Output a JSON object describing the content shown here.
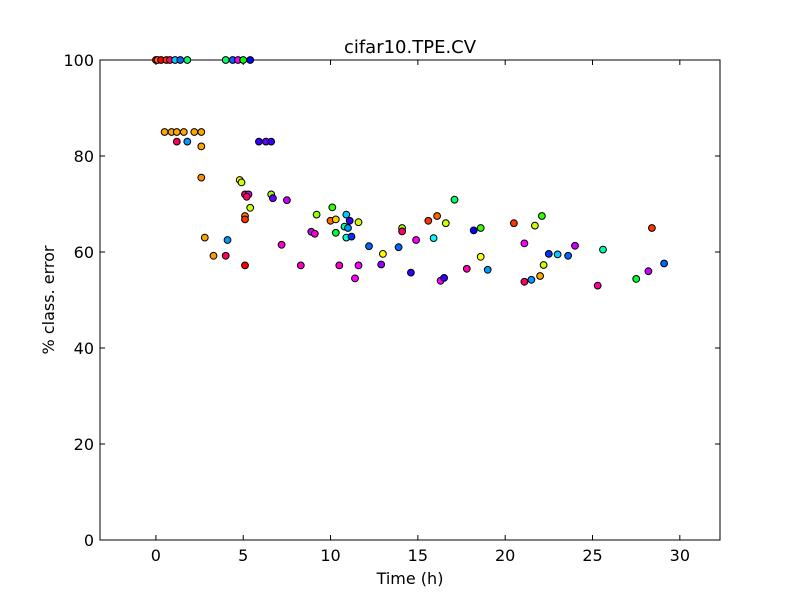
{
  "chart_data": {
    "type": "scatter",
    "title": "cifar10.TPE.CV",
    "xlabel": "Time (h)",
    "ylabel": "% class. error",
    "xlim": [
      -3.2,
      32.3
    ],
    "ylim": [
      0,
      100
    ],
    "xticks": [
      0,
      5,
      10,
      15,
      20,
      25,
      30
    ],
    "yticks": [
      0,
      20,
      40,
      60,
      80,
      100
    ],
    "grid": false,
    "marker_edge_color": "#000000",
    "points": [
      {
        "x": 0.0,
        "y": 100,
        "color": "#ff0000"
      },
      {
        "x": 0.1,
        "y": 100,
        "color": "#ff6600"
      },
      {
        "x": 0.3,
        "y": 100,
        "color": "#ff0000"
      },
      {
        "x": 0.6,
        "y": 100,
        "color": "#ff3300"
      },
      {
        "x": 0.8,
        "y": 100,
        "color": "#ff0066"
      },
      {
        "x": 1.1,
        "y": 100,
        "color": "#00ccff"
      },
      {
        "x": 1.4,
        "y": 100,
        "color": "#0066ff"
      },
      {
        "x": 1.8,
        "y": 100,
        "color": "#00ff66"
      },
      {
        "x": 4.0,
        "y": 100,
        "color": "#00ff66"
      },
      {
        "x": 4.4,
        "y": 100,
        "color": "#0066ff"
      },
      {
        "x": 4.7,
        "y": 100,
        "color": "#ff00ff"
      },
      {
        "x": 5.0,
        "y": 100,
        "color": "#00ff00"
      },
      {
        "x": 5.4,
        "y": 100,
        "color": "#0000ff"
      },
      {
        "x": 0.5,
        "y": 85,
        "color": "#ffa500"
      },
      {
        "x": 0.9,
        "y": 85,
        "color": "#ffa500"
      },
      {
        "x": 1.2,
        "y": 85,
        "color": "#ffa500"
      },
      {
        "x": 1.6,
        "y": 85,
        "color": "#ffa500"
      },
      {
        "x": 2.2,
        "y": 85,
        "color": "#ffa500"
      },
      {
        "x": 2.6,
        "y": 85,
        "color": "#ffa500"
      },
      {
        "x": 1.2,
        "y": 83,
        "color": "#ff0055"
      },
      {
        "x": 1.8,
        "y": 83,
        "color": "#0099ff"
      },
      {
        "x": 2.6,
        "y": 82,
        "color": "#ffa500"
      },
      {
        "x": 2.6,
        "y": 75.5,
        "color": "#ff8c00"
      },
      {
        "x": 5.9,
        "y": 83,
        "color": "#3300ff"
      },
      {
        "x": 6.3,
        "y": 83,
        "color": "#6600ff"
      },
      {
        "x": 6.6,
        "y": 83,
        "color": "#3300ff"
      },
      {
        "x": 4.8,
        "y": 75,
        "color": "#ffff00"
      },
      {
        "x": 4.9,
        "y": 74.5,
        "color": "#ccff00"
      },
      {
        "x": 5.1,
        "y": 72,
        "color": "#ff0066"
      },
      {
        "x": 5.3,
        "y": 72,
        "color": "#cc00ff"
      },
      {
        "x": 5.2,
        "y": 71.5,
        "color": "#ff0066"
      },
      {
        "x": 6.6,
        "y": 72,
        "color": "#99ff00"
      },
      {
        "x": 6.7,
        "y": 71.2,
        "color": "#6600ff"
      },
      {
        "x": 7.5,
        "y": 70.8,
        "color": "#cc00ff"
      },
      {
        "x": 5.4,
        "y": 69.2,
        "color": "#ccff00"
      },
      {
        "x": 5.1,
        "y": 67.5,
        "color": "#ff7f00"
      },
      {
        "x": 5.1,
        "y": 66.8,
        "color": "#ff3300"
      },
      {
        "x": 2.8,
        "y": 63,
        "color": "#ffa500"
      },
      {
        "x": 4.1,
        "y": 62.5,
        "color": "#0099ff"
      },
      {
        "x": 3.3,
        "y": 59.2,
        "color": "#ff9900"
      },
      {
        "x": 4.0,
        "y": 59.2,
        "color": "#ff0066"
      },
      {
        "x": 5.1,
        "y": 57.2,
        "color": "#ff0000"
      },
      {
        "x": 7.2,
        "y": 61.5,
        "color": "#ff00cc"
      },
      {
        "x": 8.3,
        "y": 57.2,
        "color": "#ff00cc"
      },
      {
        "x": 8.9,
        "y": 64.2,
        "color": "#cc00ff"
      },
      {
        "x": 9.1,
        "y": 63.8,
        "color": "#ff00cc"
      },
      {
        "x": 9.2,
        "y": 67.8,
        "color": "#99ff00"
      },
      {
        "x": 10.0,
        "y": 66.5,
        "color": "#ff6600"
      },
      {
        "x": 10.1,
        "y": 69.3,
        "color": "#33ff00"
      },
      {
        "x": 10.3,
        "y": 66.8,
        "color": "#ffcc00"
      },
      {
        "x": 10.3,
        "y": 64,
        "color": "#00ff33"
      },
      {
        "x": 10.5,
        "y": 57.2,
        "color": "#ff00cc"
      },
      {
        "x": 10.8,
        "y": 65.3,
        "color": "#00ff99"
      },
      {
        "x": 10.9,
        "y": 67.8,
        "color": "#00ccff"
      },
      {
        "x": 11.0,
        "y": 65,
        "color": "#0099ff"
      },
      {
        "x": 11.1,
        "y": 66.5,
        "color": "#3300ff"
      },
      {
        "x": 10.9,
        "y": 63,
        "color": "#00ffcc"
      },
      {
        "x": 11.2,
        "y": 63.2,
        "color": "#0033ff"
      },
      {
        "x": 11.4,
        "y": 54.5,
        "color": "#ff00ff"
      },
      {
        "x": 11.6,
        "y": 66.2,
        "color": "#ccff00"
      },
      {
        "x": 11.6,
        "y": 57.2,
        "color": "#ff00ff"
      },
      {
        "x": 12.2,
        "y": 61.2,
        "color": "#0066ff"
      },
      {
        "x": 12.9,
        "y": 57.4,
        "color": "#9900ff"
      },
      {
        "x": 13.0,
        "y": 59.6,
        "color": "#ffff00"
      },
      {
        "x": 13.9,
        "y": 61,
        "color": "#0066ff"
      },
      {
        "x": 14.1,
        "y": 65,
        "color": "#99ff00"
      },
      {
        "x": 14.1,
        "y": 64.3,
        "color": "#ff0066"
      },
      {
        "x": 14.6,
        "y": 55.7,
        "color": "#3300ff"
      },
      {
        "x": 14.9,
        "y": 62.5,
        "color": "#ff00ff"
      },
      {
        "x": 15.6,
        "y": 66.5,
        "color": "#ff3300"
      },
      {
        "x": 15.9,
        "y": 62.9,
        "color": "#00ffff"
      },
      {
        "x": 16.1,
        "y": 67.5,
        "color": "#ff6600"
      },
      {
        "x": 16.3,
        "y": 54,
        "color": "#ff00ff"
      },
      {
        "x": 16.5,
        "y": 54.6,
        "color": "#3300ff"
      },
      {
        "x": 16.6,
        "y": 66,
        "color": "#ccff00"
      },
      {
        "x": 17.1,
        "y": 70.9,
        "color": "#00ff66"
      },
      {
        "x": 17.8,
        "y": 56.5,
        "color": "#ff00aa"
      },
      {
        "x": 18.2,
        "y": 64.5,
        "color": "#0000ff"
      },
      {
        "x": 18.6,
        "y": 65,
        "color": "#33ff00"
      },
      {
        "x": 18.6,
        "y": 59,
        "color": "#ffff00"
      },
      {
        "x": 19.0,
        "y": 56.3,
        "color": "#0099ff"
      },
      {
        "x": 20.5,
        "y": 66,
        "color": "#ff3300"
      },
      {
        "x": 21.1,
        "y": 61.8,
        "color": "#ff00ff"
      },
      {
        "x": 21.1,
        "y": 53.8,
        "color": "#ff0066"
      },
      {
        "x": 21.5,
        "y": 54.2,
        "color": "#0099ff"
      },
      {
        "x": 21.7,
        "y": 65.5,
        "color": "#ccff00"
      },
      {
        "x": 22.0,
        "y": 55,
        "color": "#ffa500"
      },
      {
        "x": 22.1,
        "y": 67.5,
        "color": "#33ff00"
      },
      {
        "x": 22.2,
        "y": 57.3,
        "color": "#ccff00"
      },
      {
        "x": 22.5,
        "y": 59.6,
        "color": "#0033ff"
      },
      {
        "x": 23.0,
        "y": 59.5,
        "color": "#00ccff"
      },
      {
        "x": 23.6,
        "y": 59.2,
        "color": "#0066ff"
      },
      {
        "x": 24.0,
        "y": 61.3,
        "color": "#cc00ff"
      },
      {
        "x": 25.3,
        "y": 53,
        "color": "#ff0099"
      },
      {
        "x": 25.6,
        "y": 60.5,
        "color": "#00ffaa"
      },
      {
        "x": 27.5,
        "y": 54.4,
        "color": "#00ff33"
      },
      {
        "x": 28.2,
        "y": 56,
        "color": "#cc00ff"
      },
      {
        "x": 28.4,
        "y": 65,
        "color": "#ff3300"
      },
      {
        "x": 29.1,
        "y": 57.6,
        "color": "#0066ff"
      }
    ]
  }
}
